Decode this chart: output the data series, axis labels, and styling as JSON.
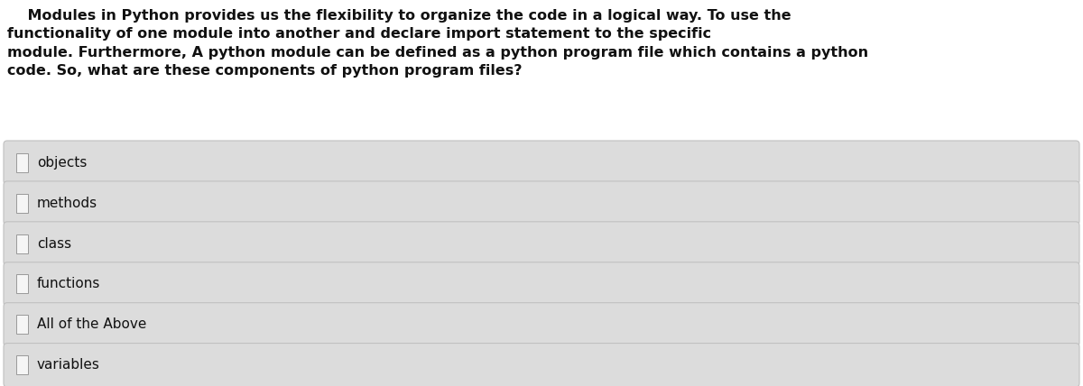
{
  "background_color": "#ffffff",
  "question_bg_color": "#ffffff",
  "question_text_line1": "    Modules in Python provides us the flexibility to organize the code in a logical way. To use the",
  "question_text_line2": "functionality of one module into another and declare import statement to the specific",
  "question_text_line3": "module. Furthermore, A python module can be defined as a python program file which contains a python",
  "question_text_line4": "code. So, what are these components of python program files?",
  "options": [
    "objects",
    "methods",
    "class",
    "functions",
    "All of the Above",
    "variables"
  ],
  "option_box_color": "#dcdcdc",
  "option_box_edge_color": "#c0c0c0",
  "option_text_color": "#111111",
  "question_text_color": "#111111",
  "checkbox_color": "#f5f5f5",
  "checkbox_edge_color": "#999999",
  "question_fontsize": 11.5,
  "option_fontsize": 11.0,
  "fig_width": 12.0,
  "fig_height": 4.28,
  "dpi": 100
}
